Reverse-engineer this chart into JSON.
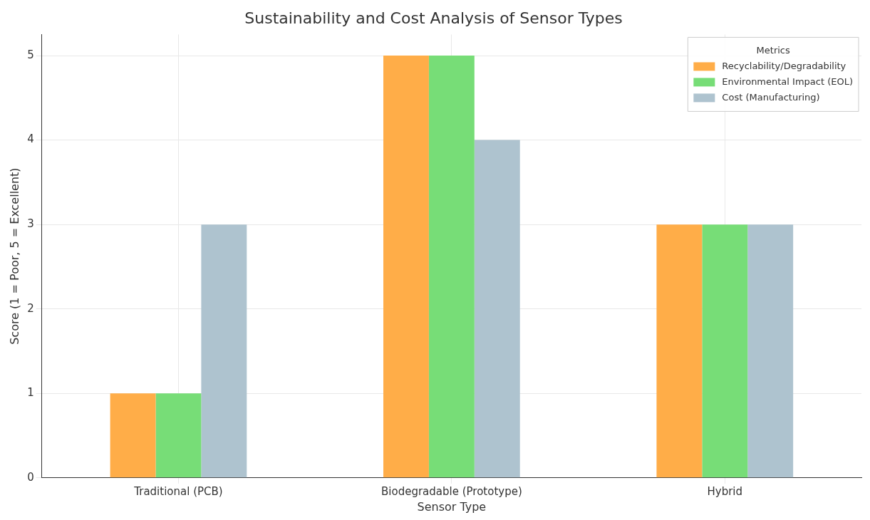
{
  "chart_data": {
    "type": "bar",
    "title": "Sustainability and Cost Analysis of Sensor Types",
    "xlabel": "Sensor Type",
    "ylabel": "Score (1 = Poor, 5 = Excellent)",
    "legend_title": "Metrics",
    "categories": [
      "Traditional (PCB)",
      "Biodegradable (Prototype)",
      "Hybrid"
    ],
    "series": [
      {
        "name": "Recyclability/Degradability",
        "color": "#ffad48",
        "values": [
          1,
          5,
          3
        ]
      },
      {
        "name": "Environmental Impact (EOL)",
        "color": "#77dd77",
        "values": [
          1,
          5,
          3
        ]
      },
      {
        "name": "Cost (Manufacturing)",
        "color": "#aec3cf",
        "values": [
          3,
          4,
          3
        ]
      }
    ],
    "ylim": [
      0,
      5.25
    ],
    "yticks": [
      0,
      1,
      2,
      3,
      4,
      5
    ],
    "grid": true,
    "legend": "top right"
  }
}
